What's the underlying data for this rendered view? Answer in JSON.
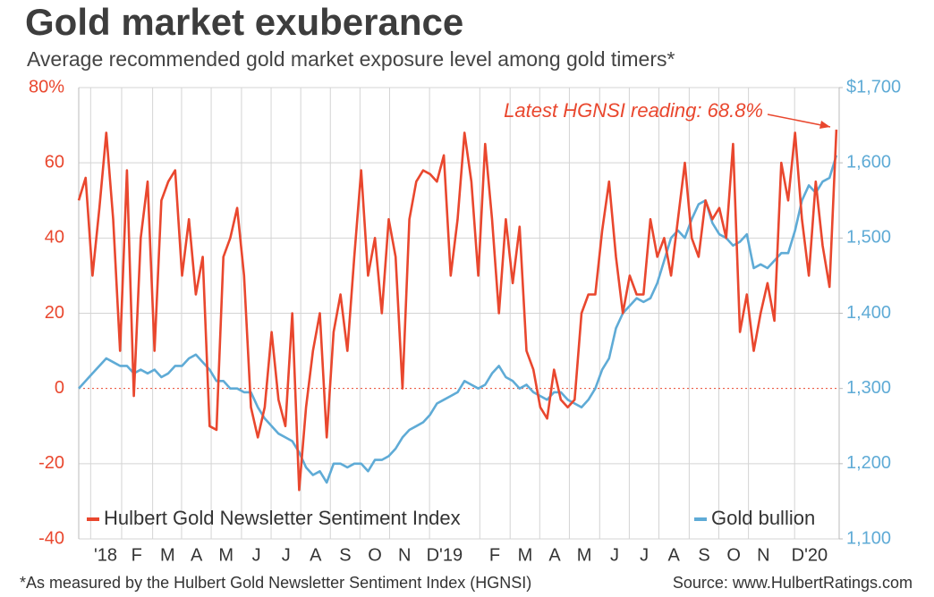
{
  "chart_data": {
    "type": "line",
    "title": "Gold market exuberance",
    "subtitle": "Average recommended gold market exposure level among gold timers*",
    "annotation": "Latest HGNSI reading: 68.8%",
    "footnote": "*As measured by the Hulbert Gold Newsletter Sentiment Index (HGNSI)",
    "source": "Source: www.HulbertRatings.com",
    "x": [
      0,
      1,
      2,
      3,
      4,
      5,
      6,
      7,
      8,
      9,
      10,
      11,
      12,
      13,
      14,
      15,
      16,
      17,
      18,
      19,
      20,
      21,
      22,
      23,
      24,
      25,
      26,
      27,
      28,
      29,
      30,
      31,
      32,
      33,
      34,
      35,
      36,
      37,
      38,
      39,
      40,
      41,
      42,
      43,
      44,
      45,
      46,
      47,
      48,
      49,
      50,
      51,
      52,
      53,
      54,
      55,
      56,
      57,
      58,
      59,
      60,
      61,
      62,
      63,
      64,
      65,
      66,
      67,
      68,
      69,
      70,
      71,
      72,
      73,
      74,
      75,
      76,
      77,
      78,
      79,
      80,
      81,
      82,
      83,
      84,
      85,
      86,
      87,
      88,
      89,
      90,
      91,
      92,
      93,
      94,
      95,
      96,
      97,
      98,
      99,
      100,
      101,
      102,
      103,
      104,
      105,
      106,
      107,
      108,
      109,
      110
    ],
    "xlim": [
      0,
      110.4
    ],
    "xticks": [
      {
        "value": 3.9,
        "label": "'18"
      },
      {
        "value": 8.4,
        "label": "F"
      },
      {
        "value": 12.9,
        "label": "M"
      },
      {
        "value": 17.1,
        "label": "A"
      },
      {
        "value": 21.4,
        "label": "M"
      },
      {
        "value": 25.8,
        "label": "J"
      },
      {
        "value": 30.1,
        "label": "J"
      },
      {
        "value": 34.4,
        "label": "A"
      },
      {
        "value": 38.7,
        "label": "S"
      },
      {
        "value": 43.0,
        "label": "O"
      },
      {
        "value": 47.3,
        "label": "N"
      },
      {
        "value": 53.1,
        "label": "D'19"
      },
      {
        "value": 60.4,
        "label": "F"
      },
      {
        "value": 64.8,
        "label": "M"
      },
      {
        "value": 69.1,
        "label": "A"
      },
      {
        "value": 73.4,
        "label": "M"
      },
      {
        "value": 77.8,
        "label": "J"
      },
      {
        "value": 82.1,
        "label": "J"
      },
      {
        "value": 86.4,
        "label": "A"
      },
      {
        "value": 90.8,
        "label": "S"
      },
      {
        "value": 95.1,
        "label": "O"
      },
      {
        "value": 99.4,
        "label": "N"
      },
      {
        "value": 106.1,
        "label": "D'20"
      }
    ],
    "ylim": [
      -40,
      80
    ],
    "yticks": [
      -40,
      -20,
      0,
      20,
      40,
      60,
      {
        "value": 80,
        "label": "80%"
      }
    ],
    "y2lim": [
      1100,
      1700
    ],
    "y2ticks": [
      {
        "value": 1100,
        "label": "1,100"
      },
      {
        "value": 1200,
        "label": "1,200"
      },
      {
        "value": 1300,
        "label": "1,300"
      },
      {
        "value": 1400,
        "label": "1,400"
      },
      {
        "value": 1500,
        "label": "1,500"
      },
      {
        "value": 1600,
        "label": "1,600"
      },
      {
        "value": 1700,
        "label": "$1,700"
      }
    ],
    "grid": true,
    "legend": "bottom",
    "series": [
      {
        "name": "Hulbert Gold Newsletter Sentiment Index",
        "color": "#e9472e",
        "values": [
          50,
          56,
          30,
          48,
          68,
          45,
          10,
          58,
          -2,
          40,
          55,
          10,
          50,
          55,
          58,
          30,
          45,
          25,
          35,
          -10,
          -11,
          35,
          40,
          48,
          30,
          -5,
          -13,
          -5,
          15,
          -3,
          -10,
          20,
          -27,
          -5,
          10,
          20,
          -13,
          15,
          25,
          10,
          35,
          58,
          30,
          40,
          20,
          45,
          35,
          0,
          45,
          55,
          58,
          57,
          55,
          62,
          30,
          45,
          68,
          55,
          30,
          65,
          45,
          20,
          45,
          28,
          43,
          10,
          5,
          -5,
          -8,
          5,
          -3,
          -5,
          -3,
          20,
          25,
          25,
          42,
          55,
          35,
          20,
          30,
          25,
          25,
          45,
          35,
          40,
          30,
          45,
          60,
          40,
          35,
          50,
          45,
          48,
          40,
          65,
          15,
          25,
          10,
          20,
          28,
          18,
          60,
          50,
          68,
          45,
          30,
          55,
          38,
          27,
          68.8
        ]
      },
      {
        "name": "Gold bullion",
        "color": "#5fabd6",
        "axis": "y2",
        "values": [
          1300,
          1310,
          1320,
          1330,
          1340,
          1335,
          1330,
          1330,
          1320,
          1325,
          1320,
          1325,
          1315,
          1320,
          1330,
          1330,
          1340,
          1345,
          1335,
          1325,
          1310,
          1310,
          1300,
          1300,
          1295,
          1295,
          1275,
          1260,
          1250,
          1240,
          1235,
          1230,
          1215,
          1195,
          1185,
          1190,
          1175,
          1200,
          1200,
          1195,
          1200,
          1200,
          1190,
          1205,
          1205,
          1210,
          1220,
          1235,
          1245,
          1250,
          1255,
          1265,
          1280,
          1285,
          1290,
          1295,
          1310,
          1305,
          1300,
          1305,
          1320,
          1330,
          1315,
          1310,
          1300,
          1305,
          1295,
          1290,
          1285,
          1295,
          1295,
          1285,
          1280,
          1275,
          1285,
          1300,
          1325,
          1340,
          1380,
          1400,
          1410,
          1420,
          1415,
          1420,
          1440,
          1470,
          1500,
          1510,
          1500,
          1525,
          1545,
          1550,
          1520,
          1505,
          1500,
          1490,
          1495,
          1505,
          1460,
          1465,
          1460,
          1470,
          1480,
          1480,
          1510,
          1550,
          1570,
          1560,
          1575,
          1580,
          1610
        ]
      }
    ]
  }
}
